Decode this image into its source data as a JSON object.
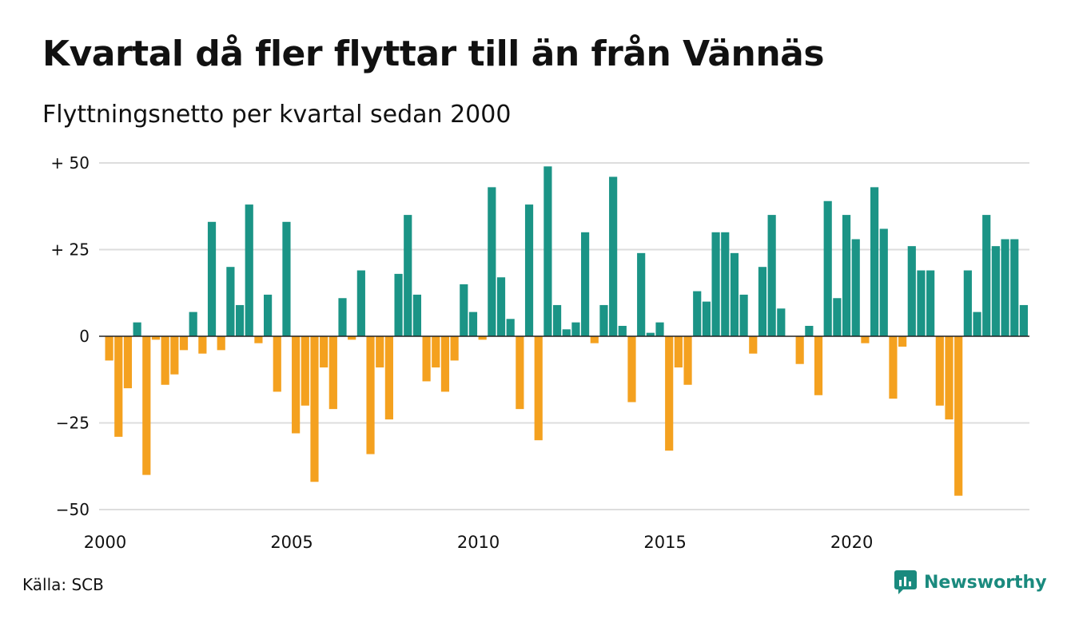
{
  "title": "Kvartal då fler flyttar till än från Vännäs",
  "subtitle": "Flyttningsnetto per kvartal sedan 2000",
  "source": "Källa: SCB",
  "brand": "Newsworthy",
  "colors": {
    "positive": "#1b9486",
    "negative": "#f4a11f",
    "grid": "#dddddd",
    "brand": "#1a8a7e"
  },
  "chart_data": {
    "type": "bar",
    "title": "Kvartal då fler flyttar till än från Vännäs",
    "subtitle": "Flyttningsnetto per kvartal sedan 2000",
    "x_start": "2000 Q1",
    "x_ticks": [
      "2000",
      "2005",
      "2010",
      "2015",
      "2020"
    ],
    "y_ticks": [
      {
        "value": 50,
        "label": "+ 50"
      },
      {
        "value": 25,
        "label": "+ 25"
      },
      {
        "value": 0,
        "label": "0"
      },
      {
        "value": -25,
        "label": "−25"
      },
      {
        "value": -50,
        "label": "−50"
      }
    ],
    "ylim": [
      -50,
      50
    ],
    "grid": true,
    "values": [
      -7,
      -29,
      -15,
      4,
      -40,
      -1,
      -14,
      -11,
      -4,
      7,
      -5,
      33,
      -4,
      20,
      9,
      38,
      -2,
      12,
      -16,
      33,
      -28,
      -20,
      -42,
      -9,
      -21,
      11,
      -1,
      19,
      -34,
      -9,
      -24,
      18,
      35,
      12,
      -13,
      -9,
      -16,
      -7,
      15,
      7,
      -1,
      43,
      17,
      5,
      -21,
      38,
      -30,
      49,
      9,
      2,
      4,
      30,
      -2,
      9,
      46,
      3,
      -19,
      24,
      1,
      4,
      -33,
      -9,
      -14,
      13,
      10,
      30,
      30,
      24,
      12,
      -5,
      20,
      35,
      8,
      0,
      -8,
      3,
      -17,
      39,
      11,
      35,
      28,
      -2,
      43,
      31,
      -18,
      -3,
      26,
      19,
      19,
      -20,
      -24,
      -46,
      19,
      7,
      35,
      26,
      28,
      28,
      9
    ]
  }
}
